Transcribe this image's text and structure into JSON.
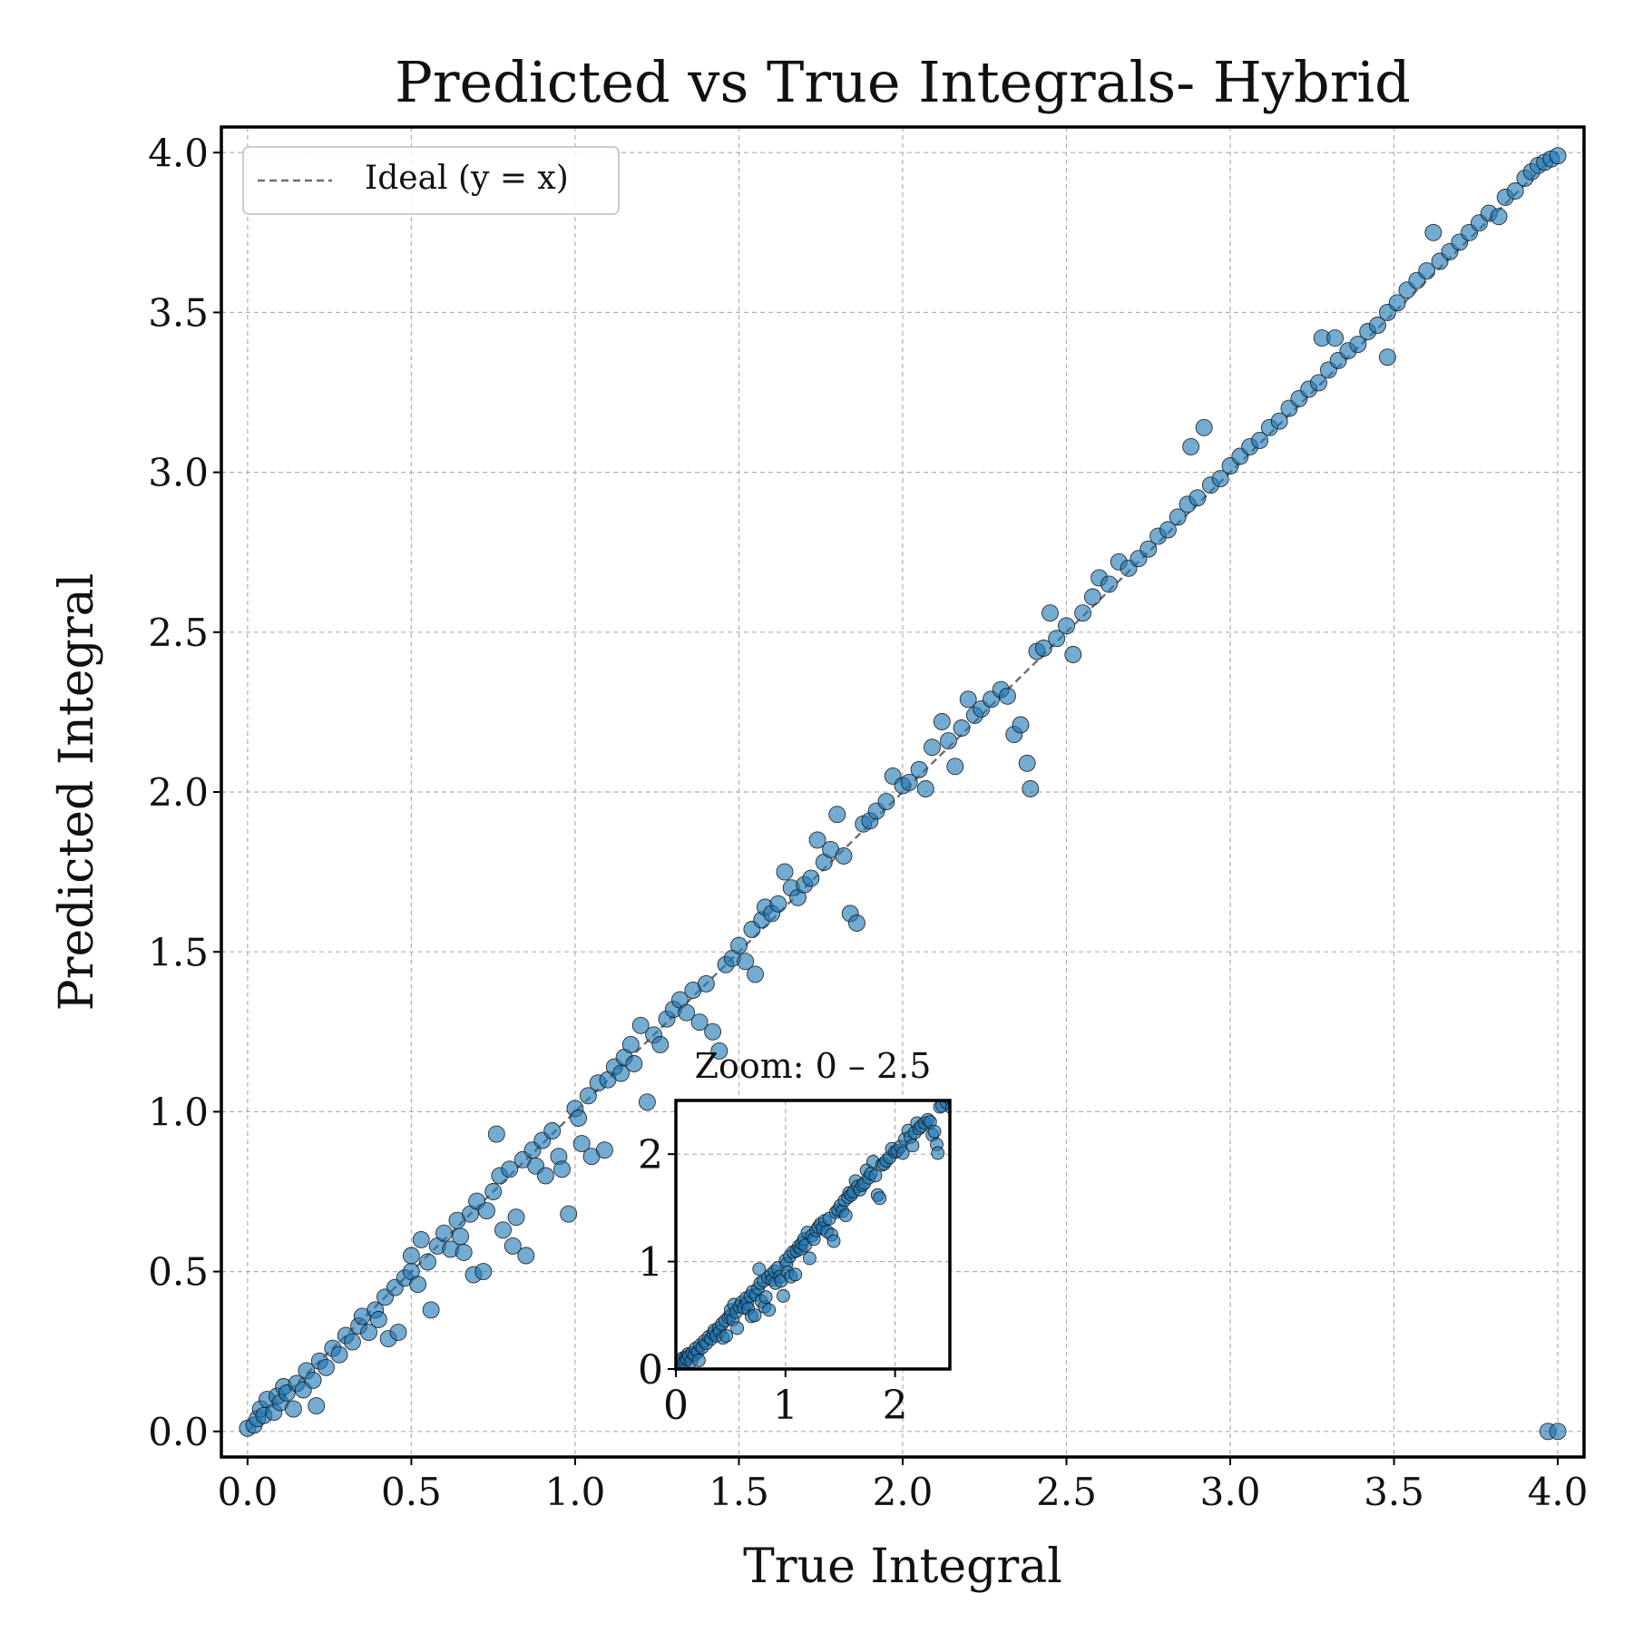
{
  "chart_data": [
    {
      "type": "scatter",
      "title": "Predicted vs True Integrals- Hybrid",
      "xlabel": "True Integral",
      "ylabel": "Predicted Integral",
      "xlim": [
        -0.08,
        4.08
      ],
      "ylim": [
        -0.08,
        4.08
      ],
      "xticks": [
        "0.0",
        "0.5",
        "1.0",
        "1.5",
        "2.0",
        "2.5",
        "3.0",
        "3.5",
        "4.0"
      ],
      "yticks": [
        "0.0",
        "0.5",
        "1.0",
        "1.5",
        "2.0",
        "2.5",
        "3.0",
        "3.5",
        "4.0"
      ],
      "xtick_values": [
        0,
        0.5,
        1,
        1.5,
        2,
        2.5,
        3,
        3.5,
        4
      ],
      "ytick_values": [
        0,
        0.5,
        1,
        1.5,
        2,
        2.5,
        3,
        3.5,
        4
      ],
      "grid": true,
      "legend": {
        "position": "top-left",
        "entries": [
          "Ideal (y = x)"
        ]
      },
      "series": [
        {
          "name": "Ideal (y = x)",
          "style": "dashed-line",
          "color": "#6e6e6e",
          "x": [
            0,
            4
          ],
          "y": [
            0,
            4
          ]
        },
        {
          "style": "markers",
          "color": "#1f77b4",
          "points": [
            [
              0.0,
              0.01
            ],
            [
              0.02,
              0.02
            ],
            [
              0.03,
              0.04
            ],
            [
              0.04,
              0.07
            ],
            [
              0.05,
              0.05
            ],
            [
              0.06,
              0.1
            ],
            [
              0.08,
              0.06
            ],
            [
              0.09,
              0.11
            ],
            [
              0.1,
              0.09
            ],
            [
              0.11,
              0.14
            ],
            [
              0.12,
              0.12
            ],
            [
              0.14,
              0.07
            ],
            [
              0.15,
              0.15
            ],
            [
              0.17,
              0.13
            ],
            [
              0.18,
              0.19
            ],
            [
              0.2,
              0.16
            ],
            [
              0.21,
              0.08
            ],
            [
              0.22,
              0.22
            ],
            [
              0.24,
              0.2
            ],
            [
              0.26,
              0.26
            ],
            [
              0.28,
              0.24
            ],
            [
              0.3,
              0.3
            ],
            [
              0.32,
              0.28
            ],
            [
              0.34,
              0.33
            ],
            [
              0.35,
              0.36
            ],
            [
              0.37,
              0.31
            ],
            [
              0.39,
              0.38
            ],
            [
              0.4,
              0.35
            ],
            [
              0.42,
              0.42
            ],
            [
              0.43,
              0.29
            ],
            [
              0.45,
              0.45
            ],
            [
              0.46,
              0.31
            ],
            [
              0.48,
              0.48
            ],
            [
              0.5,
              0.5
            ],
            [
              0.5,
              0.55
            ],
            [
              0.52,
              0.46
            ],
            [
              0.53,
              0.6
            ],
            [
              0.55,
              0.53
            ],
            [
              0.56,
              0.38
            ],
            [
              0.58,
              0.58
            ],
            [
              0.6,
              0.62
            ],
            [
              0.62,
              0.57
            ],
            [
              0.64,
              0.66
            ],
            [
              0.65,
              0.61
            ],
            [
              0.66,
              0.56
            ],
            [
              0.68,
              0.68
            ],
            [
              0.69,
              0.49
            ],
            [
              0.7,
              0.72
            ],
            [
              0.72,
              0.5
            ],
            [
              0.73,
              0.69
            ],
            [
              0.75,
              0.75
            ],
            [
              0.76,
              0.93
            ],
            [
              0.77,
              0.8
            ],
            [
              0.78,
              0.63
            ],
            [
              0.8,
              0.82
            ],
            [
              0.81,
              0.58
            ],
            [
              0.82,
              0.67
            ],
            [
              0.84,
              0.85
            ],
            [
              0.85,
              0.55
            ],
            [
              0.87,
              0.88
            ],
            [
              0.88,
              0.83
            ],
            [
              0.9,
              0.91
            ],
            [
              0.91,
              0.8
            ],
            [
              0.93,
              0.94
            ],
            [
              0.95,
              0.86
            ],
            [
              0.96,
              0.82
            ],
            [
              0.98,
              0.68
            ],
            [
              1.0,
              1.01
            ],
            [
              1.01,
              0.98
            ],
            [
              1.02,
              0.9
            ],
            [
              1.04,
              1.05
            ],
            [
              1.05,
              0.86
            ],
            [
              1.07,
              1.09
            ],
            [
              1.09,
              0.88
            ],
            [
              1.1,
              1.1
            ],
            [
              1.12,
              1.14
            ],
            [
              1.14,
              1.12
            ],
            [
              1.15,
              1.17
            ],
            [
              1.17,
              1.21
            ],
            [
              1.18,
              1.15
            ],
            [
              1.2,
              1.27
            ],
            [
              1.22,
              1.03
            ],
            [
              1.24,
              1.24
            ],
            [
              1.26,
              1.21
            ],
            [
              1.28,
              1.29
            ],
            [
              1.3,
              1.32
            ],
            [
              1.32,
              1.35
            ],
            [
              1.34,
              1.31
            ],
            [
              1.36,
              1.38
            ],
            [
              1.38,
              1.28
            ],
            [
              1.4,
              1.4
            ],
            [
              1.42,
              1.25
            ],
            [
              1.44,
              1.19
            ],
            [
              1.46,
              1.46
            ],
            [
              1.48,
              1.48
            ],
            [
              1.5,
              1.52
            ],
            [
              1.52,
              1.47
            ],
            [
              1.54,
              1.57
            ],
            [
              1.55,
              1.43
            ],
            [
              1.57,
              1.6
            ],
            [
              1.58,
              1.64
            ],
            [
              1.6,
              1.62
            ],
            [
              1.62,
              1.65
            ],
            [
              1.64,
              1.75
            ],
            [
              1.66,
              1.7
            ],
            [
              1.68,
              1.67
            ],
            [
              1.7,
              1.71
            ],
            [
              1.72,
              1.73
            ],
            [
              1.74,
              1.85
            ],
            [
              1.76,
              1.78
            ],
            [
              1.78,
              1.82
            ],
            [
              1.8,
              1.93
            ],
            [
              1.82,
              1.8
            ],
            [
              1.84,
              1.62
            ],
            [
              1.86,
              1.59
            ],
            [
              1.88,
              1.9
            ],
            [
              1.9,
              1.91
            ],
            [
              1.92,
              1.94
            ],
            [
              1.95,
              1.97
            ],
            [
              1.97,
              2.05
            ],
            [
              2.0,
              2.02
            ],
            [
              2.02,
              2.03
            ],
            [
              2.05,
              2.07
            ],
            [
              2.07,
              2.01
            ],
            [
              2.09,
              2.14
            ],
            [
              2.12,
              2.22
            ],
            [
              2.14,
              2.16
            ],
            [
              2.16,
              2.08
            ],
            [
              2.18,
              2.2
            ],
            [
              2.2,
              2.29
            ],
            [
              2.22,
              2.24
            ],
            [
              2.24,
              2.26
            ],
            [
              2.27,
              2.29
            ],
            [
              2.3,
              2.32
            ],
            [
              2.32,
              2.3
            ],
            [
              2.34,
              2.18
            ],
            [
              2.36,
              2.21
            ],
            [
              2.38,
              2.09
            ],
            [
              2.39,
              2.01
            ],
            [
              2.41,
              2.44
            ],
            [
              2.43,
              2.45
            ],
            [
              2.45,
              2.56
            ],
            [
              2.47,
              2.48
            ],
            [
              2.5,
              2.52
            ],
            [
              2.52,
              2.43
            ],
            [
              2.55,
              2.56
            ],
            [
              2.58,
              2.61
            ],
            [
              2.6,
              2.67
            ],
            [
              2.63,
              2.65
            ],
            [
              2.66,
              2.72
            ],
            [
              2.69,
              2.7
            ],
            [
              2.72,
              2.73
            ],
            [
              2.75,
              2.76
            ],
            [
              2.78,
              2.8
            ],
            [
              2.81,
              2.82
            ],
            [
              2.84,
              2.86
            ],
            [
              2.87,
              2.9
            ],
            [
              2.88,
              3.08
            ],
            [
              2.9,
              2.92
            ],
            [
              2.92,
              3.14
            ],
            [
              2.94,
              2.96
            ],
            [
              2.97,
              2.98
            ],
            [
              3.0,
              3.02
            ],
            [
              3.03,
              3.05
            ],
            [
              3.06,
              3.08
            ],
            [
              3.09,
              3.1
            ],
            [
              3.12,
              3.14
            ],
            [
              3.15,
              3.16
            ],
            [
              3.18,
              3.2
            ],
            [
              3.21,
              3.23
            ],
            [
              3.24,
              3.26
            ],
            [
              3.27,
              3.28
            ],
            [
              3.28,
              3.42
            ],
            [
              3.3,
              3.32
            ],
            [
              3.32,
              3.42
            ],
            [
              3.33,
              3.35
            ],
            [
              3.36,
              3.38
            ],
            [
              3.39,
              3.4
            ],
            [
              3.42,
              3.44
            ],
            [
              3.45,
              3.46
            ],
            [
              3.48,
              3.5
            ],
            [
              3.48,
              3.36
            ],
            [
              3.51,
              3.53
            ],
            [
              3.54,
              3.57
            ],
            [
              3.57,
              3.6
            ],
            [
              3.6,
              3.63
            ],
            [
              3.62,
              3.75
            ],
            [
              3.64,
              3.66
            ],
            [
              3.67,
              3.69
            ],
            [
              3.7,
              3.72
            ],
            [
              3.73,
              3.75
            ],
            [
              3.76,
              3.78
            ],
            [
              3.79,
              3.81
            ],
            [
              3.82,
              3.8
            ],
            [
              3.84,
              3.86
            ],
            [
              3.87,
              3.88
            ],
            [
              3.9,
              3.92
            ],
            [
              3.92,
              3.94
            ],
            [
              3.94,
              3.96
            ],
            [
              3.96,
              3.97
            ],
            [
              3.98,
              3.98
            ],
            [
              4.0,
              3.99
            ],
            [
              3.97,
              0.0
            ],
            [
              4.0,
              0.0
            ]
          ]
        }
      ]
    },
    {
      "type": "scatter",
      "title": "Zoom: 0 – 2.5",
      "xlim": [
        0,
        2.5
      ],
      "ylim": [
        0,
        2.5
      ],
      "xticks": [
        "0",
        "1",
        "2"
      ],
      "yticks": [
        "0",
        "1",
        "2"
      ],
      "xtick_values": [
        0,
        1,
        2
      ],
      "ytick_values": [
        0,
        1,
        2
      ],
      "grid": true,
      "points_source": "same markers as the main panel, restricted to 0 – 2.5"
    }
  ]
}
